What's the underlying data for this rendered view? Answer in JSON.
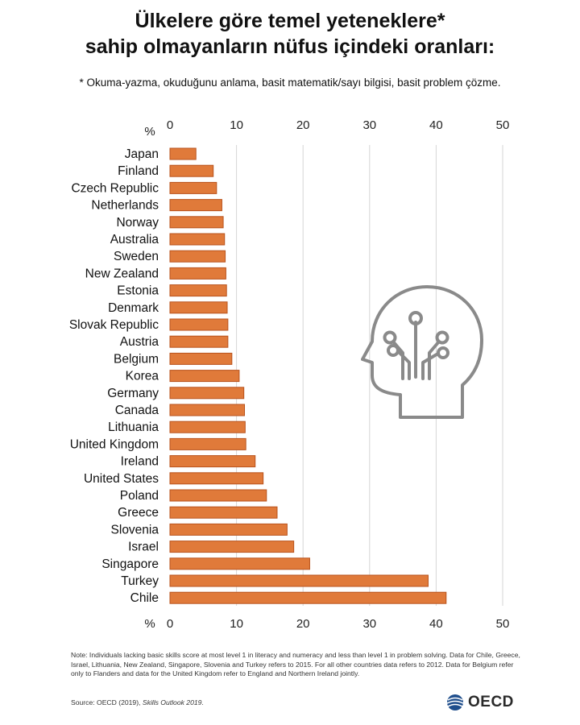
{
  "header": {
    "title_line1": "Ülkelere göre temel yeteneklere*",
    "title_line2": "sahip olmayanların nüfus içindeki oranları:",
    "subtitle": "* Okuma-yazma, okuduğunu anlama, basit matematik/sayı bilgisi, basit problem çözme."
  },
  "chart_data": {
    "type": "bar",
    "orientation": "horizontal",
    "axis_unit_label": "%",
    "xlim": [
      0,
      50
    ],
    "ticks": [
      0,
      10,
      20,
      30,
      40,
      50
    ],
    "grid": true,
    "bar_color": "#e07a3a",
    "categories": [
      "Japan",
      "Finland",
      "Czech Republic",
      "Netherlands",
      "Norway",
      "Australia",
      "Sweden",
      "New Zealand",
      "Estonia",
      "Denmark",
      "Slovak Republic",
      "Austria",
      "Belgium",
      "Korea",
      "Germany",
      "Canada",
      "Lithuania",
      "United Kingdom",
      "Ireland",
      "United States",
      "Poland",
      "Greece",
      "Slovenia",
      "Israel",
      "Singapore",
      "Turkey",
      "Chile"
    ],
    "values": [
      3.9,
      6.5,
      7.0,
      7.8,
      8.0,
      8.2,
      8.3,
      8.4,
      8.5,
      8.6,
      8.7,
      8.7,
      9.3,
      10.4,
      11.1,
      11.2,
      11.3,
      11.4,
      12.8,
      14.0,
      14.5,
      16.1,
      17.6,
      18.6,
      21.0,
      38.8,
      41.5
    ]
  },
  "footer": {
    "note": "Note: Individuals lacking basic skills score at most level 1 in literacy and numeracy and less than level 1 in problem solving. Data for Chile, Greece, Israel, Lithuania, New Zealand, Singapore, Slovenia and Turkey refers to 2015. For all other countries data refers to 2012. Data for Belgium refer only to Flanders and data for the United Kingdom refer to England and Northern Ireland jointly.",
    "source_prefix": "Source: OECD (2019), ",
    "source_title": "Skills Outlook 2019",
    "source_suffix": ".",
    "logo_text": "OECD"
  },
  "icon": "head-circuit-icon"
}
